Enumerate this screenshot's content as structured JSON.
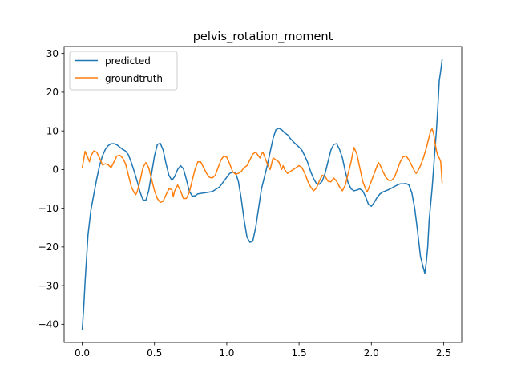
{
  "chart_data": {
    "type": "line",
    "title": "pelvis_rotation_moment",
    "xlabel": "",
    "ylabel": "",
    "xlim": [
      -0.125,
      2.625
    ],
    "ylim": [
      -44.7,
      31.8
    ],
    "xticks": [
      0.0,
      0.5,
      1.0,
      1.5,
      2.0,
      2.5
    ],
    "xtick_labels": [
      "0.0",
      "0.5",
      "1.0",
      "1.5",
      "2.0",
      "2.5"
    ],
    "yticks": [
      -40,
      -30,
      -20,
      -10,
      0,
      10,
      20,
      30
    ],
    "ytick_labels": [
      "−40",
      "−30",
      "−20",
      "−10",
      "0",
      "10",
      "20",
      "30"
    ],
    "grid": false,
    "legend": "top-left",
    "series": [
      {
        "name": "predicted",
        "color": "#1f77b4",
        "points": [
          [
            0.0,
            -41.5
          ],
          [
            0.01,
            -36.0
          ],
          [
            0.02,
            -29.0
          ],
          [
            0.03,
            -23.0
          ],
          [
            0.04,
            -17.0
          ],
          [
            0.06,
            -10.5
          ],
          [
            0.08,
            -6.5
          ],
          [
            0.1,
            -2.5
          ],
          [
            0.12,
            1.0
          ],
          [
            0.14,
            3.5
          ],
          [
            0.16,
            5.2
          ],
          [
            0.18,
            6.2
          ],
          [
            0.2,
            6.7
          ],
          [
            0.22,
            6.7
          ],
          [
            0.24,
            6.4
          ],
          [
            0.26,
            5.8
          ],
          [
            0.28,
            5.2
          ],
          [
            0.3,
            4.8
          ],
          [
            0.32,
            3.8
          ],
          [
            0.34,
            1.8
          ],
          [
            0.36,
            -0.5
          ],
          [
            0.38,
            -3.0
          ],
          [
            0.4,
            -5.8
          ],
          [
            0.42,
            -7.8
          ],
          [
            0.44,
            -8.0
          ],
          [
            0.46,
            -5.5
          ],
          [
            0.48,
            -1.0
          ],
          [
            0.5,
            3.5
          ],
          [
            0.52,
            6.5
          ],
          [
            0.54,
            6.8
          ],
          [
            0.56,
            5.0
          ],
          [
            0.58,
            1.5
          ],
          [
            0.6,
            -1.5
          ],
          [
            0.62,
            -2.8
          ],
          [
            0.64,
            -1.8
          ],
          [
            0.66,
            0.0
          ],
          [
            0.68,
            1.0
          ],
          [
            0.7,
            0.2
          ],
          [
            0.72,
            -2.5
          ],
          [
            0.74,
            -5.5
          ],
          [
            0.76,
            -6.8
          ],
          [
            0.78,
            -6.8
          ],
          [
            0.8,
            -6.3
          ],
          [
            0.85,
            -6.0
          ],
          [
            0.9,
            -5.7
          ],
          [
            0.95,
            -4.5
          ],
          [
            0.97,
            -3.5
          ],
          [
            1.0,
            -2.0
          ],
          [
            1.02,
            -1.0
          ],
          [
            1.04,
            -0.7
          ],
          [
            1.06,
            -0.8
          ],
          [
            1.08,
            -3.0
          ],
          [
            1.1,
            -7.5
          ],
          [
            1.12,
            -13.0
          ],
          [
            1.14,
            -17.5
          ],
          [
            1.16,
            -18.8
          ],
          [
            1.18,
            -18.5
          ],
          [
            1.2,
            -15.0
          ],
          [
            1.22,
            -10.0
          ],
          [
            1.24,
            -5.0
          ],
          [
            1.26,
            -2.0
          ],
          [
            1.28,
            1.0
          ],
          [
            1.3,
            4.5
          ],
          [
            1.32,
            8.0
          ],
          [
            1.34,
            10.3
          ],
          [
            1.36,
            10.7
          ],
          [
            1.38,
            10.3
          ],
          [
            1.4,
            9.5
          ],
          [
            1.42,
            9.0
          ],
          [
            1.44,
            8.0
          ],
          [
            1.46,
            7.2
          ],
          [
            1.48,
            6.5
          ],
          [
            1.5,
            5.8
          ],
          [
            1.52,
            5.0
          ],
          [
            1.54,
            3.5
          ],
          [
            1.56,
            1.8
          ],
          [
            1.58,
            -0.5
          ],
          [
            1.6,
            -2.3
          ],
          [
            1.62,
            -3.6
          ],
          [
            1.64,
            -3.8
          ],
          [
            1.66,
            -3.0
          ],
          [
            1.68,
            -1.0
          ],
          [
            1.7,
            2.0
          ],
          [
            1.72,
            5.0
          ],
          [
            1.74,
            6.5
          ],
          [
            1.76,
            6.7
          ],
          [
            1.78,
            5.2
          ],
          [
            1.8,
            3.0
          ],
          [
            1.82,
            -0.5
          ],
          [
            1.84,
            -3.5
          ],
          [
            1.86,
            -5.0
          ],
          [
            1.88,
            -5.5
          ],
          [
            1.9,
            -5.3
          ],
          [
            1.92,
            -5.0
          ],
          [
            1.94,
            -5.5
          ],
          [
            1.96,
            -7.0
          ],
          [
            1.98,
            -9.0
          ],
          [
            2.0,
            -9.5
          ],
          [
            2.02,
            -8.5
          ],
          [
            2.04,
            -7.2
          ],
          [
            2.06,
            -6.3
          ],
          [
            2.08,
            -5.8
          ],
          [
            2.1,
            -5.5
          ],
          [
            2.12,
            -5.2
          ],
          [
            2.14,
            -4.8
          ],
          [
            2.16,
            -4.4
          ],
          [
            2.18,
            -4.0
          ],
          [
            2.2,
            -3.7
          ],
          [
            2.22,
            -3.7
          ],
          [
            2.24,
            -3.6
          ],
          [
            2.26,
            -4.0
          ],
          [
            2.28,
            -6.0
          ],
          [
            2.3,
            -10.0
          ],
          [
            2.32,
            -16.0
          ],
          [
            2.34,
            -22.5
          ],
          [
            2.36,
            -25.5
          ],
          [
            2.37,
            -26.8
          ],
          [
            2.38,
            -24.0
          ],
          [
            2.39,
            -20.0
          ],
          [
            2.4,
            -13.0
          ],
          [
            2.42,
            -5.0
          ],
          [
            2.43,
            0.0
          ],
          [
            2.44,
            5.0
          ],
          [
            2.45,
            10.0
          ],
          [
            2.46,
            16.0
          ],
          [
            2.47,
            23.0
          ],
          [
            2.48,
            25.5
          ],
          [
            2.49,
            28.5
          ]
        ]
      },
      {
        "name": "groundtruth",
        "color": "#ff7f0e",
        "points": [
          [
            0.0,
            0.5
          ],
          [
            0.01,
            2.5
          ],
          [
            0.02,
            4.7
          ],
          [
            0.04,
            3.0
          ],
          [
            0.05,
            2.0
          ],
          [
            0.06,
            3.5
          ],
          [
            0.08,
            4.8
          ],
          [
            0.1,
            4.5
          ],
          [
            0.12,
            3.0
          ],
          [
            0.14,
            1.2
          ],
          [
            0.16,
            1.5
          ],
          [
            0.18,
            1.2
          ],
          [
            0.2,
            0.5
          ],
          [
            0.22,
            2.0
          ],
          [
            0.24,
            3.5
          ],
          [
            0.26,
            3.7
          ],
          [
            0.28,
            3.0
          ],
          [
            0.3,
            1.5
          ],
          [
            0.32,
            -1.5
          ],
          [
            0.34,
            -4.5
          ],
          [
            0.36,
            -6.0
          ],
          [
            0.37,
            -6.5
          ],
          [
            0.38,
            -5.8
          ],
          [
            0.4,
            -3.0
          ],
          [
            0.42,
            0.5
          ],
          [
            0.44,
            1.8
          ],
          [
            0.46,
            0.5
          ],
          [
            0.48,
            -2.5
          ],
          [
            0.5,
            -5.5
          ],
          [
            0.52,
            -7.5
          ],
          [
            0.54,
            -8.5
          ],
          [
            0.56,
            -8.2
          ],
          [
            0.58,
            -6.5
          ],
          [
            0.6,
            -5.0
          ],
          [
            0.62,
            -5.2
          ],
          [
            0.63,
            -7.0
          ],
          [
            0.64,
            -5.5
          ],
          [
            0.66,
            -4.0
          ],
          [
            0.68,
            -5.5
          ],
          [
            0.7,
            -7.5
          ],
          [
            0.72,
            -7.5
          ],
          [
            0.74,
            -6.0
          ],
          [
            0.76,
            -3.0
          ],
          [
            0.78,
            0.0
          ],
          [
            0.8,
            2.0
          ],
          [
            0.82,
            2.0
          ],
          [
            0.84,
            0.5
          ],
          [
            0.86,
            -1.0
          ],
          [
            0.88,
            -2.0
          ],
          [
            0.9,
            -2.2
          ],
          [
            0.92,
            -1.5
          ],
          [
            0.94,
            0.5
          ],
          [
            0.96,
            2.5
          ],
          [
            0.98,
            3.5
          ],
          [
            1.0,
            3.2
          ],
          [
            1.02,
            1.5
          ],
          [
            1.04,
            -0.5
          ],
          [
            1.06,
            -1.2
          ],
          [
            1.08,
            -1.0
          ],
          [
            1.1,
            -0.5
          ],
          [
            1.12,
            0.5
          ],
          [
            1.14,
            1.0
          ],
          [
            1.16,
            2.5
          ],
          [
            1.18,
            4.0
          ],
          [
            1.2,
            4.5
          ],
          [
            1.22,
            3.5
          ],
          [
            1.23,
            3.0
          ],
          [
            1.24,
            4.0
          ],
          [
            1.25,
            4.5
          ],
          [
            1.26,
            3.5
          ],
          [
            1.28,
            1.5
          ],
          [
            1.3,
            0.0
          ],
          [
            1.31,
            1.5
          ],
          [
            1.32,
            3.0
          ],
          [
            1.34,
            2.5
          ],
          [
            1.36,
            2.0
          ],
          [
            1.38,
            0.0
          ],
          [
            1.39,
            1.0
          ],
          [
            1.4,
            0.0
          ],
          [
            1.42,
            -1.0
          ],
          [
            1.44,
            -0.5
          ],
          [
            1.46,
            0.0
          ],
          [
            1.48,
            0.5
          ],
          [
            1.5,
            1.0
          ],
          [
            1.52,
            0.5
          ],
          [
            1.54,
            -1.0
          ],
          [
            1.56,
            -3.0
          ],
          [
            1.58,
            -4.5
          ],
          [
            1.6,
            -5.5
          ],
          [
            1.62,
            -4.8
          ],
          [
            1.64,
            -3.0
          ],
          [
            1.66,
            -1.5
          ],
          [
            1.68,
            -1.8
          ],
          [
            1.7,
            -3.0
          ],
          [
            1.72,
            -3.2
          ],
          [
            1.74,
            -2.2
          ],
          [
            1.76,
            -3.0
          ],
          [
            1.78,
            -4.5
          ],
          [
            1.8,
            -5.5
          ],
          [
            1.82,
            -4.0
          ],
          [
            1.84,
            -1.0
          ],
          [
            1.86,
            2.0
          ],
          [
            1.87,
            4.0
          ],
          [
            1.88,
            5.7
          ],
          [
            1.9,
            4.0
          ],
          [
            1.92,
            0.5
          ],
          [
            1.94,
            -3.0
          ],
          [
            1.96,
            -5.0
          ],
          [
            1.97,
            -5.8
          ],
          [
            1.98,
            -5.0
          ],
          [
            2.0,
            -3.0
          ],
          [
            2.02,
            -1.0
          ],
          [
            2.04,
            1.0
          ],
          [
            2.05,
            1.8
          ],
          [
            2.06,
            1.2
          ],
          [
            2.08,
            -0.5
          ],
          [
            2.1,
            -2.0
          ],
          [
            2.12,
            -2.8
          ],
          [
            2.14,
            -2.8
          ],
          [
            2.16,
            -2.0
          ],
          [
            2.18,
            0.0
          ],
          [
            2.2,
            2.0
          ],
          [
            2.22,
            3.3
          ],
          [
            2.24,
            3.5
          ],
          [
            2.26,
            2.5
          ],
          [
            2.28,
            1.0
          ],
          [
            2.3,
            -0.5
          ],
          [
            2.31,
            -1.0
          ],
          [
            2.32,
            -0.5
          ],
          [
            2.34,
            1.0
          ],
          [
            2.36,
            3.0
          ],
          [
            2.38,
            5.5
          ],
          [
            2.4,
            8.5
          ],
          [
            2.41,
            10.0
          ],
          [
            2.42,
            10.5
          ],
          [
            2.43,
            9.5
          ],
          [
            2.44,
            7.0
          ],
          [
            2.45,
            5.0
          ],
          [
            2.46,
            3.5
          ],
          [
            2.47,
            3.0
          ],
          [
            2.48,
            2.0
          ],
          [
            2.49,
            -3.5
          ]
        ]
      }
    ]
  }
}
